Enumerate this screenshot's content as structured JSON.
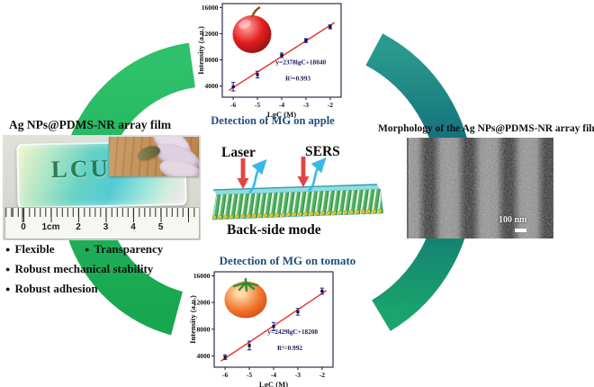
{
  "left_panel": {
    "title": "Ag NPs@PDMS-NR array film",
    "film_label": "LCU",
    "ruler_numbers": [
      "0",
      "1cm",
      "2",
      "3",
      "4",
      "5"
    ],
    "bullet_glyph": "●",
    "bullet_rows": [
      [
        "Flexible",
        "Transparency"
      ],
      [
        "Robust mechanical stability"
      ],
      [
        "Robust adhesion"
      ]
    ]
  },
  "right_panel": {
    "title": "Morphology of  the Ag NPs@PDMS-NR array film",
    "scale_bar_label": "100 nm"
  },
  "center_panel": {
    "laser_label": "Laser",
    "sers_label": "SERS",
    "mode_label": "Back-side mode"
  },
  "chart_data": [
    {
      "type": "scatter",
      "title": "Detection of MG on apple",
      "icon": "apple-icon",
      "xlabel": "LgC (M)",
      "ylabel": "Intensity (a.u.)",
      "x": [
        -6,
        -5,
        -4,
        -3,
        -2
      ],
      "y": [
        3900,
        5750,
        8700,
        10950,
        13050
      ],
      "yerr": [
        650,
        500,
        350,
        300,
        300
      ],
      "xticks": [
        -6,
        -5,
        -4,
        -3,
        -2
      ],
      "yticks": [
        4000,
        8000,
        12000,
        16000
      ],
      "xlim": [
        -6.45,
        -1.55
      ],
      "ylim": [
        2300,
        16600
      ],
      "fit": {
        "slope": 2378,
        "intercept": 18040,
        "label": "y=2378lgC+18040",
        "r2_label": "R²=0.993"
      }
    },
    {
      "type": "scatter",
      "title": "Detection of MG on tomato",
      "icon": "tomato-icon",
      "xlabel": "LgC (M)",
      "ylabel": "Intensity (a.u.)",
      "x": [
        -6,
        -5,
        -4,
        -3,
        -2
      ],
      "y": [
        3800,
        5550,
        8400,
        10600,
        13700
      ],
      "yerr": [
        350,
        650,
        600,
        500,
        450
      ],
      "xticks": [
        -6,
        -5,
        -4,
        -3,
        -2
      ],
      "yticks": [
        4000,
        8000,
        12000,
        16000
      ],
      "xlim": [
        -6.45,
        -1.55
      ],
      "ylim": [
        2300,
        16600
      ],
      "fit": {
        "slope": 2429,
        "intercept": 18208,
        "label": "y=2429lgC+18208",
        "r2_label": "R²=0.992"
      }
    }
  ],
  "colors": {
    "arc_green_light": "#2ec06a",
    "arc_green_dark": "#18a750",
    "arc_teal_top": "#2a9a8c",
    "arc_teal_mid": "#0f6478",
    "arc_teal_bottom": "#1aa56c",
    "chart_title_blue": "#1f4e79",
    "fit_line_red": "#e8302a",
    "error_bar_blue": "#2727cc",
    "laser_arrow_red": "#e04545",
    "signal_arrow_blue": "#39b7e9"
  }
}
